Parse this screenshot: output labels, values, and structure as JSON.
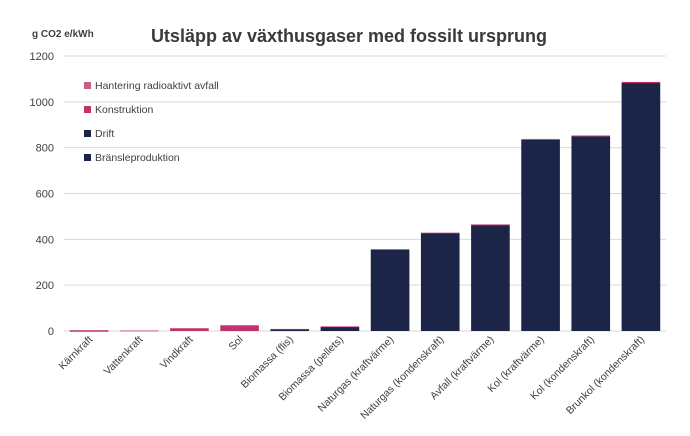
{
  "chart_data": {
    "type": "bar",
    "stacked": true,
    "title": "Utsläpp av växthusgaser med fossilt ursprung",
    "ylabel": "g CO2 e/kWh",
    "xlabel": "",
    "ylim": [
      0,
      1200
    ],
    "yticks": [
      0,
      200,
      400,
      600,
      800,
      1000,
      1200
    ],
    "grid": true,
    "legend_position": "top-left",
    "categories": [
      "Kärnkraft",
      "Vattenkraft",
      "Vindkraft",
      "Sol",
      "Biomassa (flis)",
      "Biomassa (pellets)",
      "Naturgas (kraftvärme)",
      "Naturgas (kondenskraft)",
      "Avfall (kraftvärme)",
      "Kol (kraftvärme)",
      "Kol (kondenskraft)",
      "Brunkol (kondenskraft)"
    ],
    "series": [
      {
        "name": "Bränsleproduktion",
        "color": "#1c2447",
        "values": [
          1,
          0,
          0,
          0,
          7,
          18,
          354,
          426,
          462,
          834,
          849,
          1082
        ]
      },
      {
        "name": "Drift",
        "color": "#1c2447",
        "values": [
          0,
          0,
          0,
          0,
          0,
          0,
          0,
          0,
          0,
          0,
          0,
          0
        ]
      },
      {
        "name": "Konstruktion",
        "color": "#c2326b",
        "values": [
          2,
          2,
          12,
          25,
          2,
          2,
          3,
          3,
          3,
          4,
          4,
          5
        ]
      },
      {
        "name": "Hantering radioaktivt avfall",
        "color": "#c9607f",
        "values": [
          1,
          0,
          0,
          0,
          0,
          0,
          0,
          0,
          0,
          0,
          0,
          0
        ]
      }
    ]
  }
}
